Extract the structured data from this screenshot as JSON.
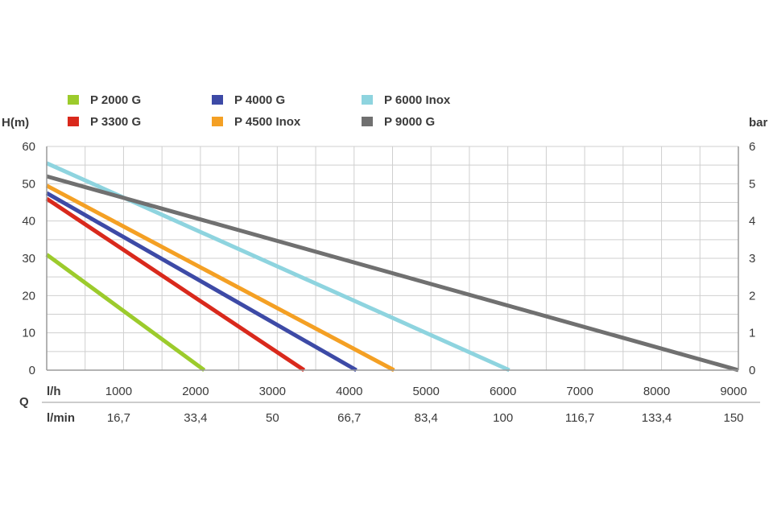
{
  "chart_data": {
    "type": "line",
    "legend": [
      {
        "name": "P 2000 G",
        "color": "#9ccb2c"
      },
      {
        "name": "P 3300 G",
        "color": "#d9291c"
      },
      {
        "name": "P 4000 G",
        "color": "#3d4aa6"
      },
      {
        "name": "P 4500 Inox",
        "color": "#f4a024"
      },
      {
        "name": "P 6000 Inox",
        "color": "#8ed4df"
      },
      {
        "name": "P 9000 G",
        "color": "#707070"
      }
    ],
    "series": [
      {
        "name": "P 2000 G",
        "color": "#9ccb2c",
        "x": [
          0,
          2050
        ],
        "y": [
          31,
          0
        ]
      },
      {
        "name": "P 3300 G",
        "color": "#d9291c",
        "x": [
          0,
          3350
        ],
        "y": [
          46,
          0
        ]
      },
      {
        "name": "P 4000 G",
        "color": "#3d4aa6",
        "x": [
          0,
          4030
        ],
        "y": [
          47.5,
          0
        ]
      },
      {
        "name": "P 4500 Inox",
        "color": "#f4a024",
        "x": [
          0,
          4520
        ],
        "y": [
          49.5,
          0
        ]
      },
      {
        "name": "P 6000 Inox",
        "color": "#8ed4df",
        "x": [
          0,
          6020
        ],
        "y": [
          55.5,
          0
        ]
      },
      {
        "name": "P 9000 G",
        "color": "#707070",
        "x": [
          0,
          9000
        ],
        "y": [
          52,
          0
        ]
      }
    ],
    "ylabel_left": "H(m)",
    "ylabel_right": "bar",
    "xlim": [
      0,
      9000
    ],
    "ylim": [
      0,
      60
    ],
    "yticks_left": [
      "0",
      "10",
      "20",
      "30",
      "40",
      "50",
      "60"
    ],
    "yticks_right": [
      "0",
      "1",
      "2",
      "3",
      "4",
      "5",
      "6"
    ],
    "x_axis_title": "Q",
    "x_row1_unit": "l/h",
    "x_row1_ticks": [
      "1000",
      "2000",
      "3000",
      "4000",
      "5000",
      "6000",
      "7000",
      "8000",
      "9000"
    ],
    "x_row2_unit": "l/min",
    "x_row2_ticks": [
      "16,7",
      "33,4",
      "50",
      "66,7",
      "83,4",
      "100",
      "116,7",
      "133,4",
      "150"
    ],
    "grid": true
  }
}
